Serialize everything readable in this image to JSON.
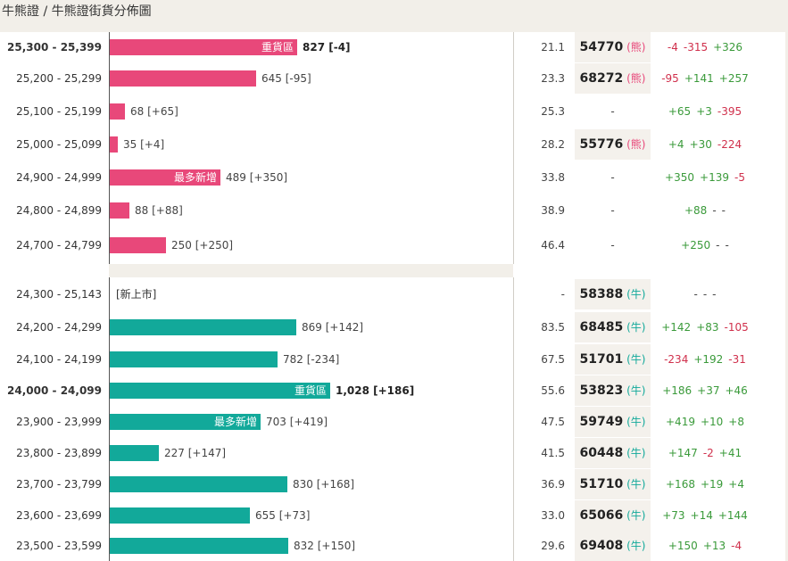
{
  "breadcrumb": "牛熊證 / 牛熊證街貨分佈圖",
  "colors": {
    "bear": "#e8487a",
    "bull": "#12a99a",
    "positive": "#3a9a3a",
    "negative": "#d0304c"
  },
  "rows": [
    {
      "range": "25,300 - 25,399",
      "type": "bear",
      "bar_ratio": 0.273,
      "tag": "重貨區",
      "value": "827 [-4]",
      "bold": true,
      "ratio": "21.1",
      "code": "54770",
      "kind": "熊",
      "changes": [
        "-4",
        "-315",
        "+326"
      ]
    },
    {
      "range": "25,200 - 25,299",
      "type": "bear",
      "bar_ratio": 0.213,
      "tag": "",
      "value": "645 [-95]",
      "bold": false,
      "ratio": "23.3",
      "code": "68272",
      "kind": "熊",
      "changes": [
        "-95",
        "+141",
        "+257"
      ]
    },
    {
      "range": "25,100 - 25,199",
      "type": "bear",
      "bar_ratio": 0.022,
      "tag": "",
      "value": "68 [+65]",
      "bold": false,
      "ratio": "25.3",
      "code": "-",
      "kind": "",
      "changes": [
        "+65",
        "+3",
        "-395"
      ]
    },
    {
      "range": "25,000 - 25,099",
      "type": "bear",
      "bar_ratio": 0.012,
      "tag": "",
      "value": "35 [+4]",
      "bold": false,
      "ratio": "28.2",
      "code": "55776",
      "kind": "熊",
      "changes": [
        "+4",
        "+30",
        "-224"
      ]
    },
    {
      "range": "24,900 - 24,999",
      "type": "bear",
      "bar_ratio": 0.161,
      "tag": "最多新增",
      "value": "489 [+350]",
      "bold": false,
      "ratio": "33.8",
      "code": "-",
      "kind": "",
      "changes": [
        "+350",
        "+139",
        "-5"
      ]
    },
    {
      "range": "24,800 - 24,899",
      "type": "bear",
      "bar_ratio": 0.029,
      "tag": "",
      "value": "88 [+88]",
      "bold": false,
      "ratio": "38.9",
      "code": "-",
      "kind": "",
      "changes": [
        "+88",
        "-",
        "-"
      ]
    },
    {
      "range": "24,700 - 24,799",
      "type": "bear",
      "bar_ratio": 0.082,
      "tag": "",
      "value": "250 [+250]",
      "bold": false,
      "ratio": "46.4",
      "code": "-",
      "kind": "",
      "changes": [
        "+250",
        "-",
        "-"
      ]
    },
    {
      "range": "24,300 - 25,143",
      "type": "new",
      "bar_ratio": 0,
      "tag": "",
      "value": "[新上市]",
      "bold": false,
      "ratio": "-",
      "code": "58388",
      "kind": "牛",
      "changes": [
        "-",
        "-",
        "-"
      ]
    },
    {
      "range": "24,200 - 24,299",
      "type": "bull",
      "bar_ratio": 0.271,
      "tag": "",
      "value": "869 [+142]",
      "bold": false,
      "ratio": "83.5",
      "code": "68485",
      "kind": "牛",
      "changes": [
        "+142",
        "+83",
        "-105"
      ]
    },
    {
      "range": "24,100 - 24,199",
      "type": "bull",
      "bar_ratio": 0.244,
      "tag": "",
      "value": "782 [-234]",
      "bold": false,
      "ratio": "67.5",
      "code": "51701",
      "kind": "牛",
      "changes": [
        "-234",
        "+192",
        "-31"
      ]
    },
    {
      "range": "24,000 - 24,099",
      "type": "bull",
      "bar_ratio": 0.321,
      "tag": "重貨區",
      "value": "1,028 [+186]",
      "bold": true,
      "ratio": "55.6",
      "code": "53823",
      "kind": "牛",
      "changes": [
        "+186",
        "+37",
        "+46"
      ]
    },
    {
      "range": "23,900 - 23,999",
      "type": "bull",
      "bar_ratio": 0.219,
      "tag": "最多新增",
      "value": "703 [+419]",
      "bold": false,
      "ratio": "47.5",
      "code": "59749",
      "kind": "牛",
      "changes": [
        "+419",
        "+10",
        "+8"
      ]
    },
    {
      "range": "23,800 - 23,899",
      "type": "bull",
      "bar_ratio": 0.071,
      "tag": "",
      "value": "227 [+147]",
      "bold": false,
      "ratio": "41.5",
      "code": "60448",
      "kind": "牛",
      "changes": [
        "+147",
        "-2",
        "+41"
      ]
    },
    {
      "range": "23,700 - 23,799",
      "type": "bull",
      "bar_ratio": 0.259,
      "tag": "",
      "value": "830 [+168]",
      "bold": false,
      "ratio": "36.9",
      "code": "51710",
      "kind": "牛",
      "changes": [
        "+168",
        "+19",
        "+4"
      ]
    },
    {
      "range": "23,600 - 23,699",
      "type": "bull",
      "bar_ratio": 0.204,
      "tag": "",
      "value": "655 [+73]",
      "bold": false,
      "ratio": "33.0",
      "code": "65066",
      "kind": "牛",
      "changes": [
        "+73",
        "+14",
        "+144"
      ]
    },
    {
      "range": "23,500 - 23,599",
      "type": "bull",
      "bar_ratio": 0.26,
      "tag": "",
      "value": "832 [+150]",
      "bold": false,
      "ratio": "29.6",
      "code": "69408",
      "kind": "牛",
      "changes": [
        "+150",
        "+13",
        "-4"
      ]
    }
  ]
}
